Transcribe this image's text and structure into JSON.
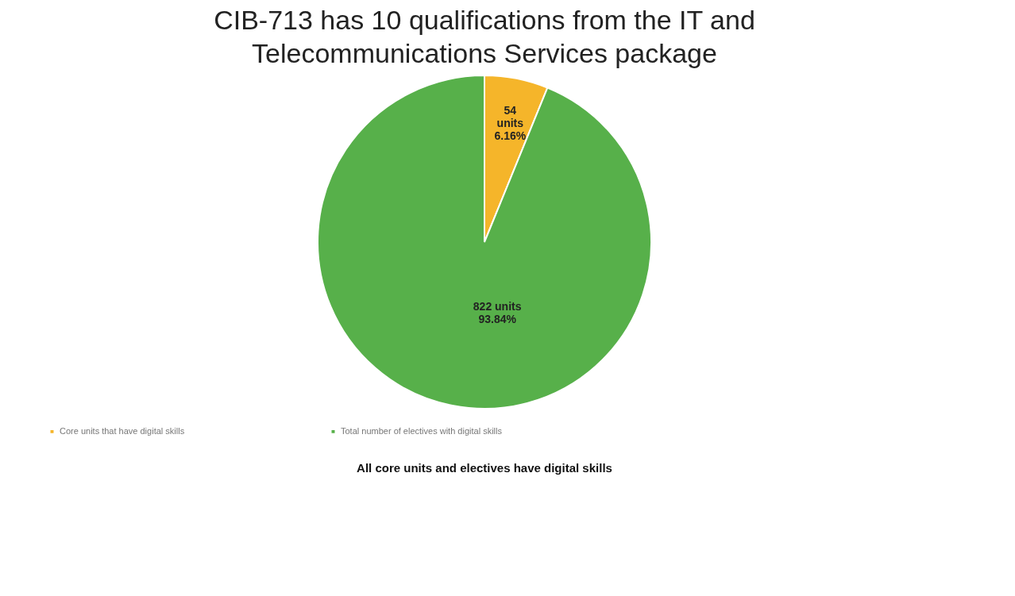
{
  "chart_data": {
    "type": "pie",
    "title": "CIB-713 has 10 qualifications from the IT and Telecommunications Services package",
    "categories": [
      "Core units that have digital skills",
      "Total number of electives with digital skills"
    ],
    "values": [
      54,
      822
    ],
    "colors": [
      "#f5b52a",
      "#57b04a"
    ],
    "value_labels": [
      "54\nunits\n6.16%",
      "822 units\n93.84%"
    ],
    "legend": "bottom",
    "annotations": [
      "All core units and electives have digital skills"
    ]
  }
}
